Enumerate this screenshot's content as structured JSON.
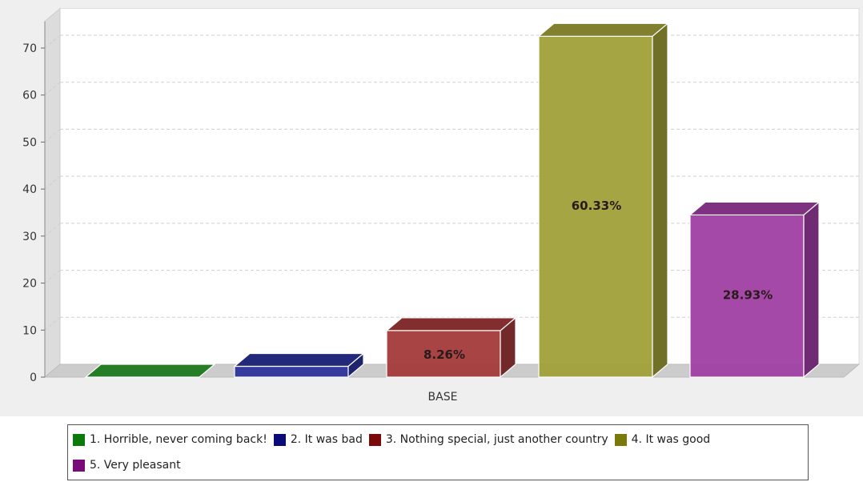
{
  "chart_data": {
    "type": "bar",
    "title": "",
    "xlabel": "",
    "ylabel": "",
    "category_label": "BASE",
    "ylim": [
      0,
      75
    ],
    "yticks": [
      0,
      10,
      20,
      30,
      40,
      50,
      60,
      70
    ],
    "grid": true,
    "legend_position": "bottom",
    "series": [
      {
        "name": "1. Horrible, never coming back!",
        "value": 0,
        "label": "",
        "color": "#2e9e2e"
      },
      {
        "name": "2. It was bad",
        "value": 2.3,
        "label": "",
        "color": "#2b3399"
      },
      {
        "name": "3. Nothing special, just another country",
        "value": 9.9,
        "label": "8.26%",
        "color": "#a33a3a"
      },
      {
        "name": "4. It was good",
        "value": 72.5,
        "label": "60.33%",
        "color": "#a0a03a"
      },
      {
        "name": "5. Very pleasant",
        "value": 34.5,
        "label": "28.93%",
        "color": "#a03fa3"
      }
    ],
    "legend_colors": [
      "#0a7a0a",
      "#0a0a7a",
      "#7a0a0a",
      "#7a7a0a",
      "#7a0a7a"
    ]
  }
}
